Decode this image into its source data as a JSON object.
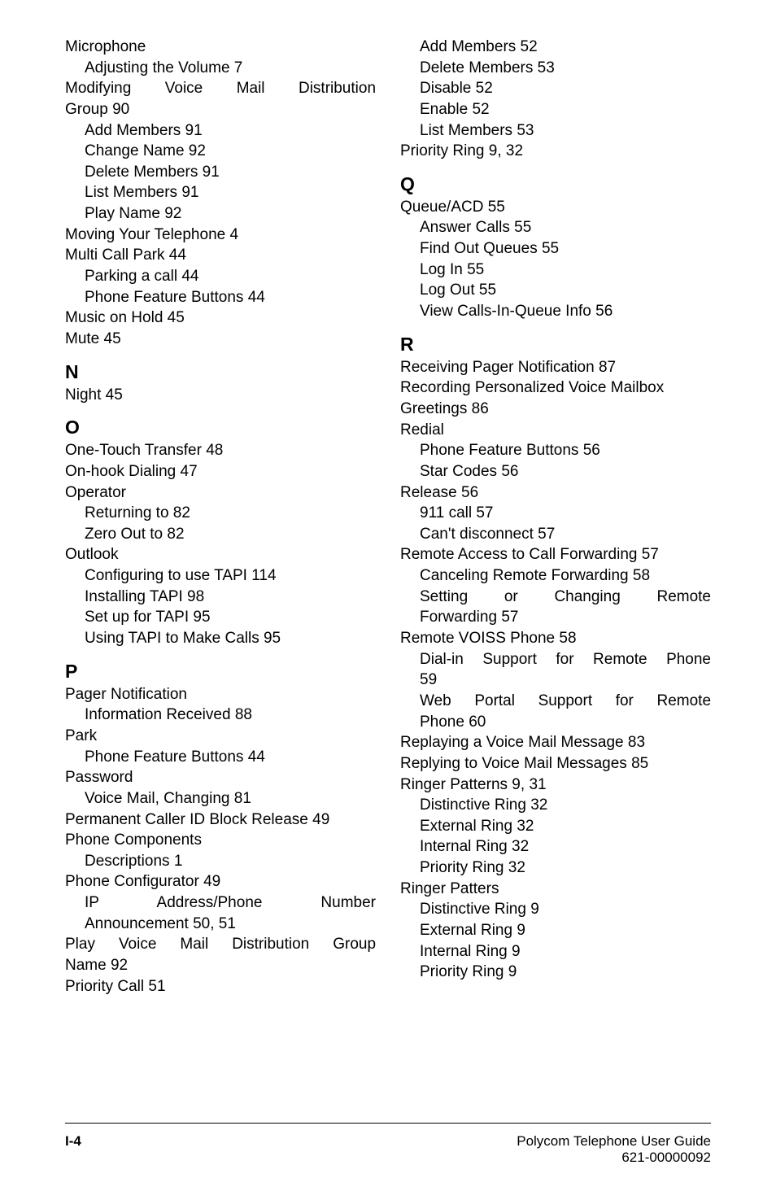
{
  "left_col": {
    "e1": "Microphone",
    "e2": "Adjusting the Volume ",
    "e2n": "7",
    "e3a": "Modifying",
    "e3b": "Voice",
    "e3c": "Mail",
    "e3d": "Distribution",
    "e4": "Group ",
    "e4n": "90",
    "e5": "Add Members ",
    "e5n": "91",
    "e6": "Change Name ",
    "e6n": "92",
    "e7": "Delete Members ",
    "e7n": "91",
    "e8": "List Members ",
    "e8n": "91",
    "e9": "Play Name ",
    "e9n": "92",
    "e10": "Moving Your Telephone ",
    "e10n": "4",
    "e11": "Multi Call Park ",
    "e11n": "44",
    "e12": "Parking a call ",
    "e12n": "44",
    "e13": "Phone Feature Buttons ",
    "e13n": "44",
    "e14": "Music on Hold ",
    "e14n": "45",
    "e15": "Mute ",
    "e15n": "45",
    "hN": "N",
    "e16": "Night ",
    "e16n": "45",
    "hO": "O",
    "e17": "One-Touch Transfer ",
    "e17n": "48",
    "e18": "On-hook Dialing ",
    "e18n": "47",
    "e19": "Operator",
    "e20": "Returning to ",
    "e20n": "82",
    "e21": "Zero Out to ",
    "e21n": "82",
    "e22": "Outlook",
    "e23": "Configuring to use TAPI ",
    "e23n": "114",
    "e24": "Installing TAPI ",
    "e24n": "98",
    "e25": "Set up for TAPI ",
    "e25n": "95",
    "e26": "Using TAPI to Make Calls ",
    "e26n": "95",
    "hP": "P",
    "e27": "Pager Notification",
    "e28": "Information Received ",
    "e28n": "88",
    "e29": "Park",
    "e30": "Phone Feature Buttons ",
    "e30n": "44",
    "e31": "Password",
    "e32": "Voice Mail, Changing ",
    "e32n": "81",
    "e33": "Permanent Caller ID Block Release ",
    "e33n": "49",
    "e34": "Phone Components",
    "e35": "Descriptions ",
    "e35n": "1",
    "e36": "Phone Configurator ",
    "e36n": "49",
    "e37a": "IP",
    "e37b": "Address/Phone",
    "e37c": "Number",
    "e38": "Announcement ",
    "e38n": "50",
    "e38s": ", ",
    "e38n2": "51",
    "e39a": "Play",
    "e39b": "Voice",
    "e39c": "Mail",
    "e39d": "Distribution",
    "e39e": "Group",
    "e40": "Name ",
    "e40n": "92",
    "e41": "Priority Call ",
    "e41n": "51"
  },
  "right_col": {
    "r1": "Add Members ",
    "r1n": "52",
    "r2": "Delete Members ",
    "r2n": "53",
    "r3": "Disable ",
    "r3n": "52",
    "r4": "Enable ",
    "r4n": "52",
    "r5": "List Members ",
    "r5n": "53",
    "r6": "Priority Ring ",
    "r6n": "9",
    "r6s": ", ",
    "r6n2": "32",
    "hQ": "Q",
    "r7": "Queue/ACD ",
    "r7n": "55",
    "r8": "Answer Calls ",
    "r8n": "55",
    "r9": "Find Out Queues ",
    "r9n": "55",
    "r10": "Log In ",
    "r10n": "55",
    "r11": "Log Out ",
    "r11n": "55",
    "r12": "View Calls-In-Queue Info ",
    "r12n": "56",
    "hR": "R",
    "r13": "Receiving Pager Notification ",
    "r13n": "87",
    "r14": "Recording Personalized Voice Mailbox",
    "r14b": "Greetings ",
    "r14bn": "86",
    "r15": "Redial",
    "r16": "Phone Feature Buttons ",
    "r16n": "56",
    "r17": "Star Codes ",
    "r17n": "56",
    "r18": "Release ",
    "r18n": "56",
    "r19": "911 call ",
    "r19n": "57",
    "r20": "Can't disconnect ",
    "r20n": "57",
    "r21": "Remote Access to Call Forwarding ",
    "r21n": "57",
    "r22": "Canceling Remote Forwarding ",
    "r22n": "58",
    "r23a": "Setting",
    "r23b": "or",
    "r23c": "Changing",
    "r23d": "Remote",
    "r24": "Forwarding ",
    "r24n": "57",
    "r25": "Remote VOISS Phone ",
    "r25n": "58",
    "r26a": "Dial-in",
    "r26b": "Support",
    "r26c": "for",
    "r26d": "Remote",
    "r26e": "Phone",
    "r27": "",
    "r27n": "59",
    "r28a": "Web",
    "r28b": "Portal",
    "r28c": "Support",
    "r28d": "for",
    "r28e": "Remote",
    "r29": "Phone ",
    "r29n": "60",
    "r30": "Replaying a Voice Mail Message ",
    "r30n": "83",
    "r31": "Replying to Voice Mail Messages ",
    "r31n": "85",
    "r32": "Ringer Patterns ",
    "r32n": "9",
    "r32s": ", ",
    "r32n2": "31",
    "r33": "Distinctive Ring ",
    "r33n": "32",
    "r34": "External Ring ",
    "r34n": "32",
    "r35": "Internal Ring ",
    "r35n": "32",
    "r36": "Priority Ring ",
    "r36n": "32",
    "r37": "Ringer Patters",
    "r38": "Distinctive Ring ",
    "r38n": "9",
    "r39": "External Ring ",
    "r39n": "9",
    "r40": "Internal Ring ",
    "r40n": "9",
    "r41": "Priority Ring ",
    "r41n": "9"
  },
  "footer": {
    "left": "I-4",
    "right1": "Polycom Telephone User Guide",
    "right2": "621-00000092"
  }
}
